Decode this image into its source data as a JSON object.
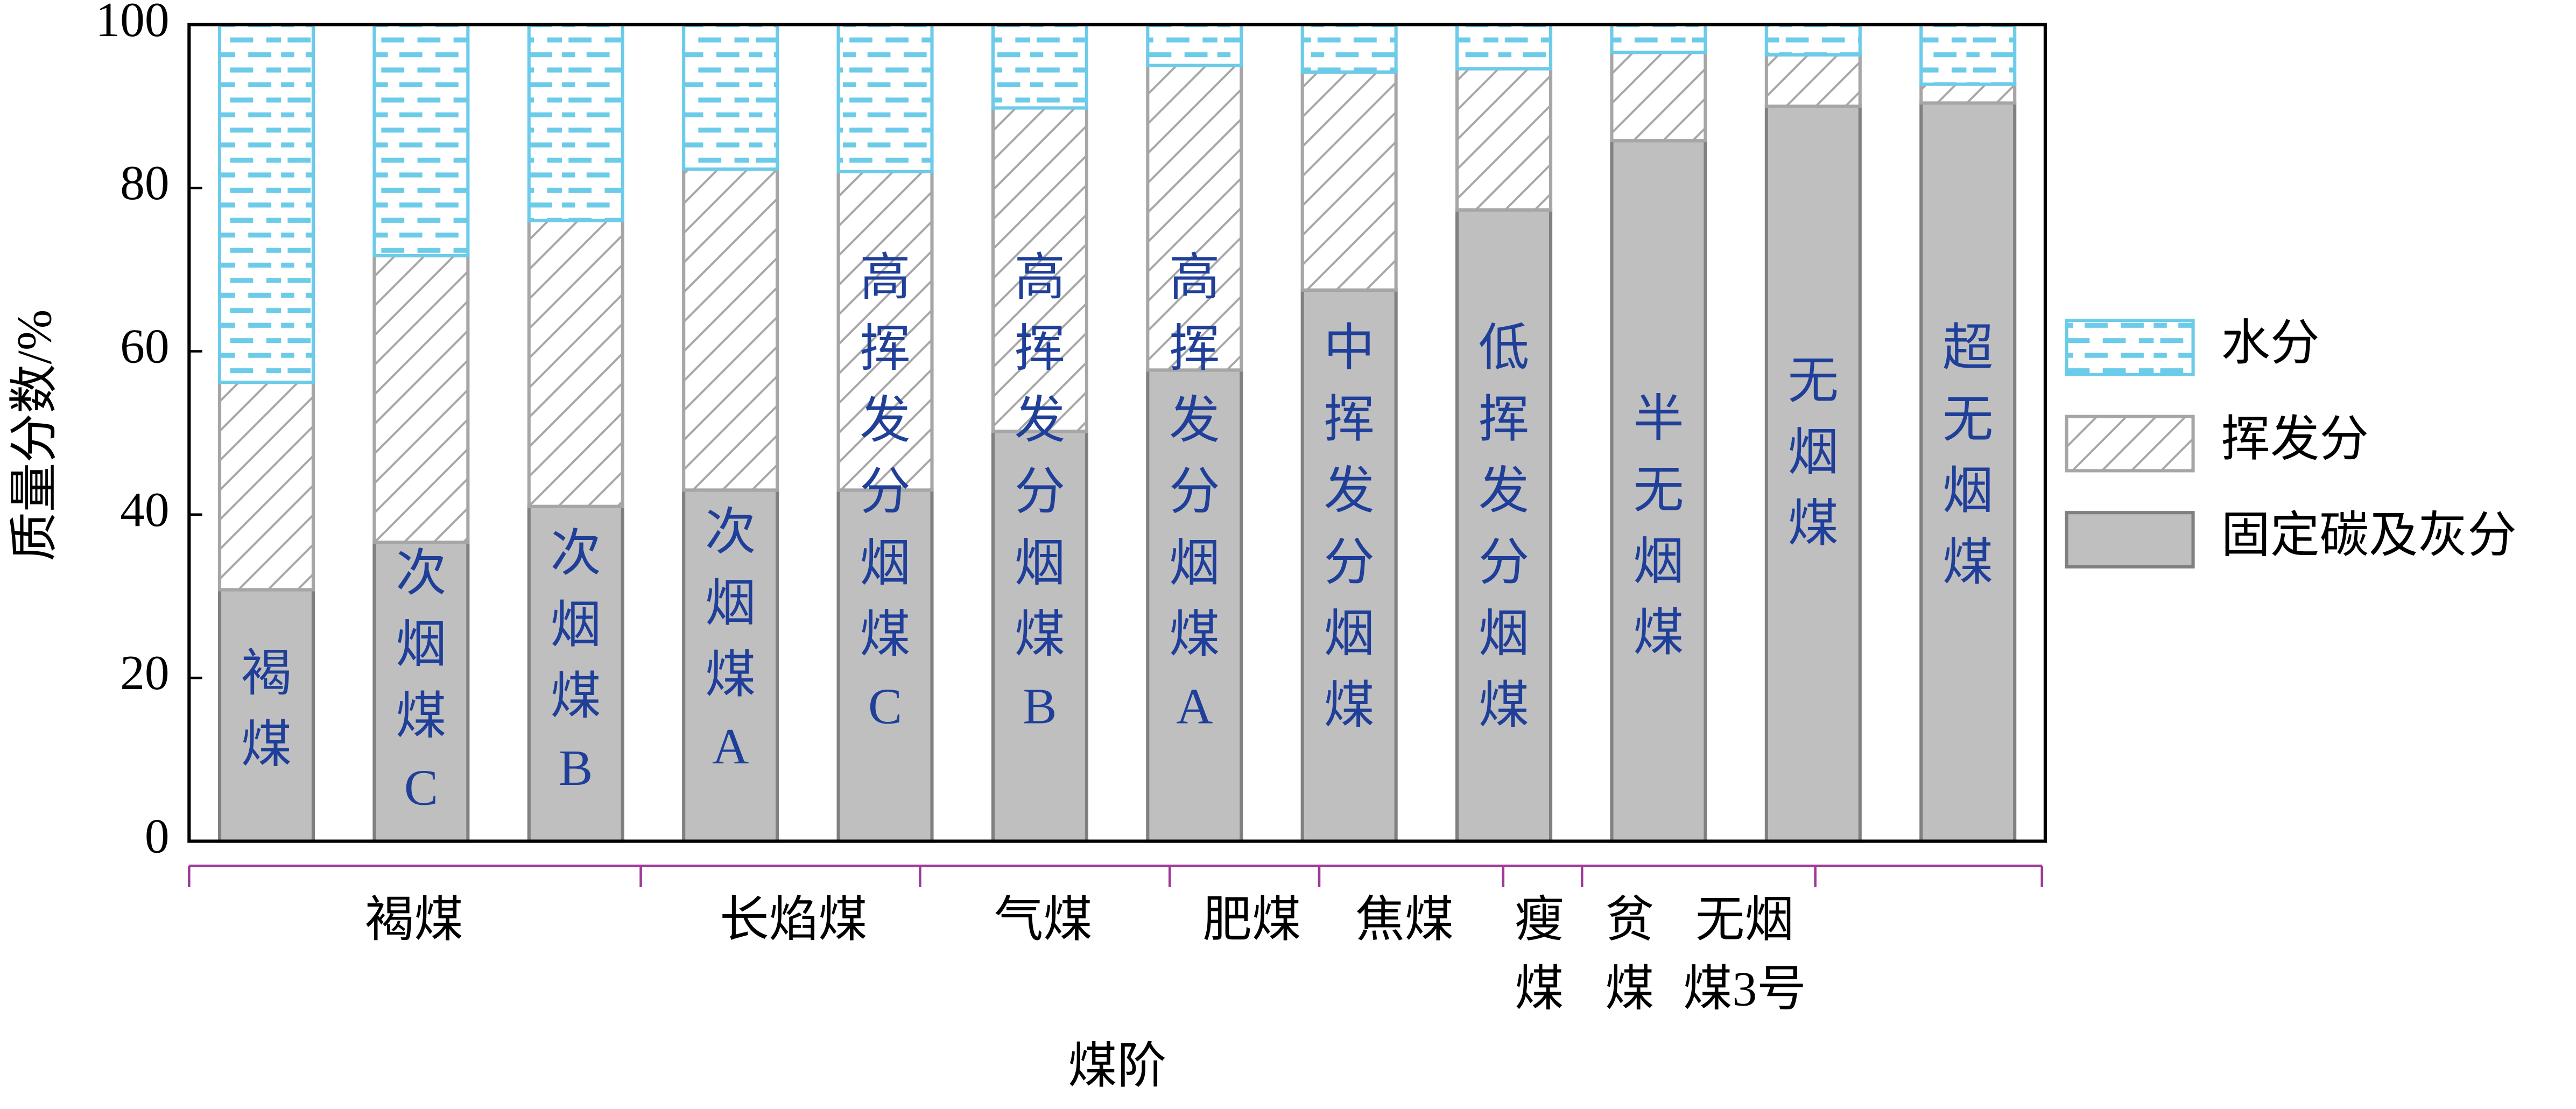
{
  "chart_data": {
    "type": "stacked_bar",
    "y_label": "质量分数/%",
    "x_label": "煤阶",
    "ylim": [
      0,
      100
    ],
    "yticks": [
      0,
      20,
      40,
      60,
      80,
      100
    ],
    "categories": [
      null,
      null,
      null,
      null,
      null,
      null,
      null,
      null,
      null,
      null,
      null,
      null
    ],
    "bar_labels": [
      "褐煤",
      "次烟煤C",
      "次烟煤B",
      "次烟煤A",
      "高挥发分烟煤C",
      "高挥发分烟煤B",
      "高挥发分烟煤A",
      "中挥发分烟煤",
      "低挥发分烟煤",
      "半无烟煤",
      "无烟煤",
      "超无烟煤"
    ],
    "groups": [
      "褐煤",
      "长焰煤",
      "气煤",
      "肥煤",
      "焦煤",
      "瘦煤",
      "贫煤",
      "无烟煤3号"
    ],
    "series": [
      {
        "name": "固定碳及灰分",
        "color": "#bfbfbf",
        "values": [
          30.8,
          36.6,
          41,
          43,
          43,
          50.2,
          57.7,
          67.5,
          77.3,
          85.8,
          90,
          90.4
        ]
      },
      {
        "name": "挥发分",
        "color": "#a6a6a6",
        "values": [
          25.4,
          35.1,
          35,
          39.3,
          39,
          39.6,
          37.3,
          26.7,
          17.3,
          10.8,
          6.3,
          2.3
        ]
      },
      {
        "name": "水分",
        "color": "#6ccbe8",
        "values": [
          43.8,
          28.3,
          24,
          17.7,
          18,
          10.2,
          5,
          5.8,
          5.4,
          3.4,
          3.7,
          7.3
        ]
      }
    ],
    "legend": "right"
  }
}
